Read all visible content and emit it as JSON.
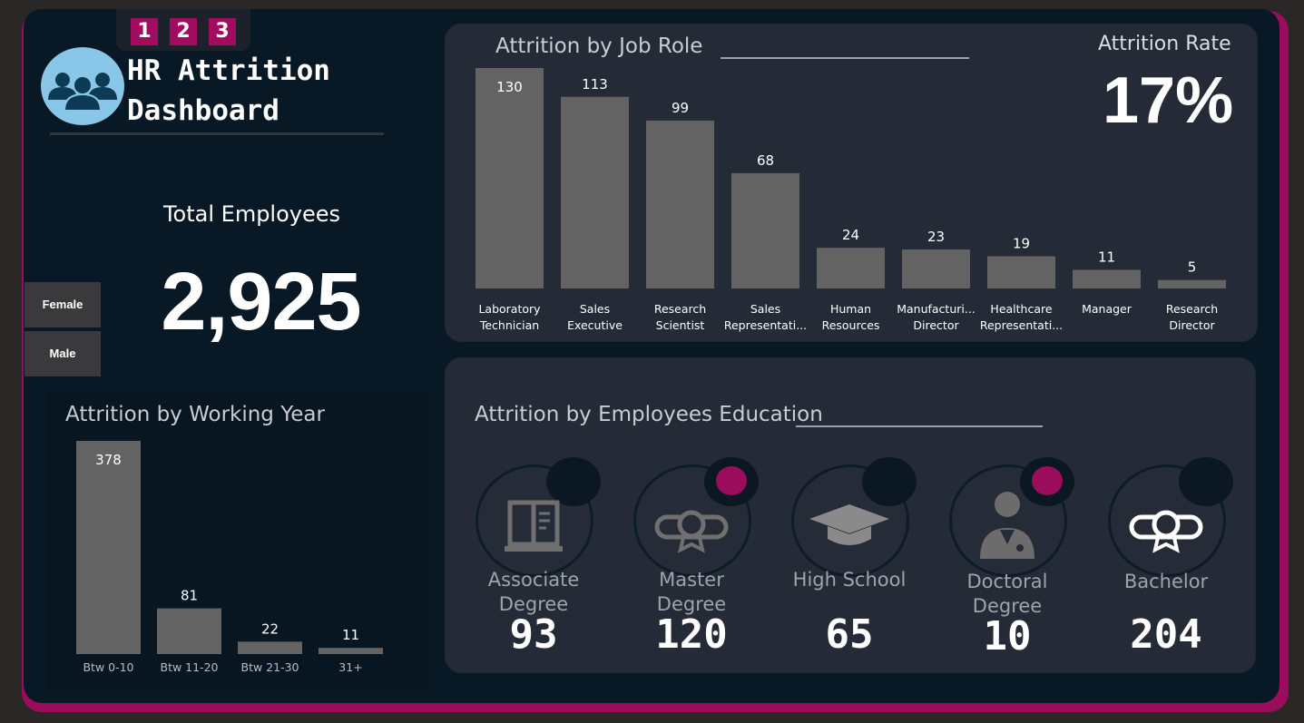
{
  "header": {
    "title": "HR Attrition\nDashboard",
    "page_tabs": [
      "1",
      "2",
      "3"
    ],
    "logo_icon": "people-group-icon"
  },
  "kpis": {
    "total_employees_label": "Total Employees",
    "total_employees_value": "2,925",
    "attrition_rate_label": "Attrition Rate",
    "attrition_rate_value": "17%"
  },
  "gender_filter": {
    "buttons": [
      "Female",
      "Male"
    ]
  },
  "job_role_panel": {
    "title": "Attrition by Job Role"
  },
  "working_year_panel": {
    "title": "Attrition by Working Year"
  },
  "education_panel": {
    "title": "Attrition by Employees Education",
    "items": [
      {
        "label": "Associate\nDegree",
        "value": "93",
        "icon": "book-icon",
        "dot_active": false
      },
      {
        "label": "Master\nDegree",
        "value": "120",
        "icon": "diploma-scroll-icon",
        "dot_active": true
      },
      {
        "label": "High School",
        "value": "65",
        "icon": "graduation-cap-icon",
        "dot_active": false
      },
      {
        "label": "Doctoral\nDegree",
        "value": "10",
        "icon": "doctor-icon",
        "dot_active": true
      },
      {
        "label": "Bachelor",
        "value": "204",
        "icon": "diploma-scroll-icon",
        "dot_active": false
      }
    ]
  },
  "colors": {
    "accent": "#9b0d5c",
    "bar": "#636363",
    "background": "#081824",
    "panel": "#252b36"
  },
  "chart_data": [
    {
      "type": "bar",
      "title": "Attrition by Job Role",
      "categories": [
        [
          "Laboratory",
          "Technician"
        ],
        [
          "Sales",
          "Executive"
        ],
        [
          "Research",
          "Scientist"
        ],
        [
          "Sales",
          "Representati..."
        ],
        [
          "Human",
          "Resources"
        ],
        [
          "Manufacturi...",
          "Director"
        ],
        [
          "Healthcare",
          "Representati..."
        ],
        [
          "Manager"
        ],
        [
          "Research",
          "Director"
        ]
      ],
      "values": [
        130,
        113,
        99,
        68,
        24,
        23,
        19,
        11,
        5
      ],
      "data_labels": true
    },
    {
      "type": "bar",
      "title": "Attrition by Working Year",
      "categories": [
        "Btw 0-10",
        "Btw 11-20",
        "Btw 21-30",
        "31+"
      ],
      "values": [
        378,
        81,
        22,
        11
      ],
      "data_labels": true
    }
  ]
}
